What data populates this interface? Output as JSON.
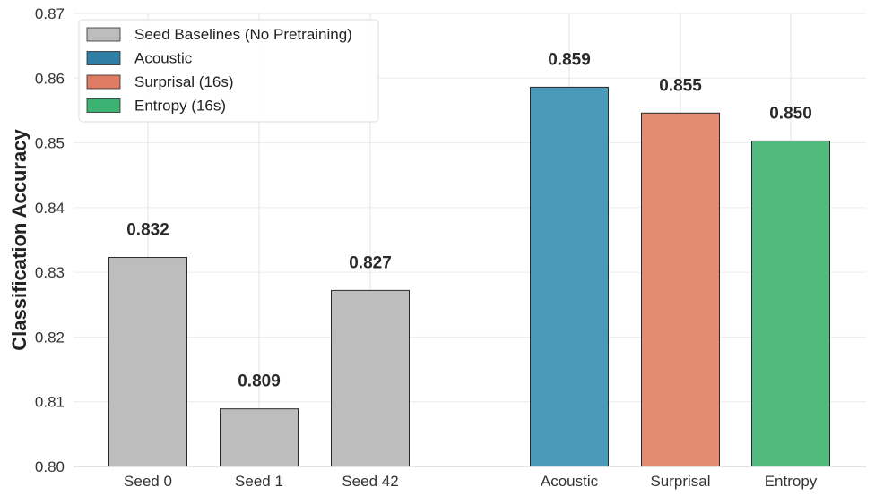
{
  "chart_data": {
    "type": "bar",
    "title": "",
    "xlabel": "",
    "ylabel": "Classification Accuracy",
    "ylim": [
      0.8,
      0.87
    ],
    "yticks": [
      "0.80",
      "0.81",
      "0.82",
      "0.83",
      "0.84",
      "0.85",
      "0.86",
      "0.87"
    ],
    "grid": true,
    "legend_position": "top-left",
    "categories": [
      "Seed 0",
      "Seed 1",
      "Seed 42",
      "Acoustic",
      "Surprisal",
      "Entropy"
    ],
    "values": [
      0.8323,
      0.8089,
      0.8272,
      0.8586,
      0.8546,
      0.8503
    ],
    "value_labels": [
      "0.832",
      "0.809",
      "0.827",
      "0.859",
      "0.855",
      "0.850"
    ],
    "bar_colors": [
      "#bdbdbd",
      "#bdbdbd",
      "#bdbdbd",
      "#4a9aba",
      "#e48c73",
      "#52b97c"
    ],
    "legend": [
      {
        "label": "Seed Baselines (No Pretraining)",
        "color": "#bdbdbd"
      },
      {
        "label": "Acoustic",
        "color": "#2e7ea6"
      },
      {
        "label": "Surprisal (16s)",
        "color": "#e07b64"
      },
      {
        "label": "Entropy (16s)",
        "color": "#3cb272"
      }
    ]
  }
}
